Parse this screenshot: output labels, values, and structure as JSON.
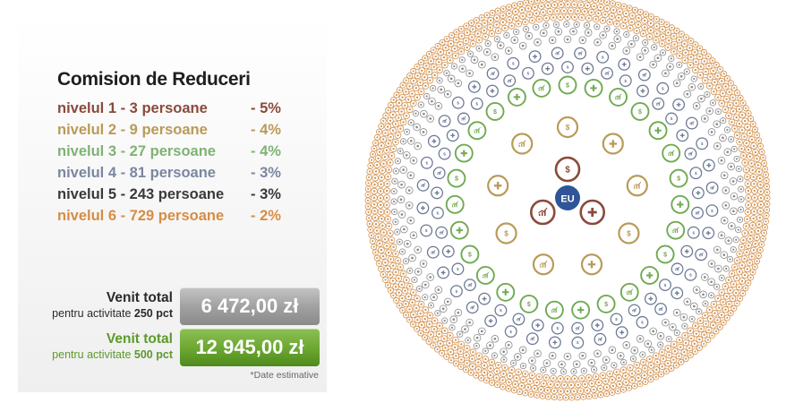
{
  "title": "Comision de Reduceri",
  "levels": [
    {
      "label": "nivelul 1 - 3 persoane",
      "percent": "- 5%",
      "color": "#8a4a3c"
    },
    {
      "label": "nivelul 2 - 9 persoane",
      "percent": "- 4%",
      "color": "#b99a58"
    },
    {
      "label": "nivelul 3 - 27 persoane",
      "percent": "- 4%",
      "color": "#7fb274"
    },
    {
      "label": "nivelul 4 - 81 persoane",
      "percent": "- 3%",
      "color": "#7b86a0"
    },
    {
      "label": "nivelul 5 - 243 persoane",
      "percent": "- 3%",
      "color": "#3a3a3a"
    },
    {
      "label": "nivelul 6 - 729 persoane",
      "percent": "- 2%",
      "color": "#d68d44"
    }
  ],
  "income": [
    {
      "label": "Venit total",
      "sub_prefix": "pentru activitate",
      "sub_value": "250 pct",
      "amount": "6 472,00 zł",
      "style": "gray",
      "label_color": "#2a2a2a"
    },
    {
      "label": "Venit total",
      "sub_prefix": "pentru activitate",
      "sub_value": "500 pct",
      "amount": "12 945,00 zł",
      "style": "green",
      "label_color": "#5c9a2c"
    }
  ],
  "footnote": "*Date estimative",
  "diagram": {
    "center_label": "EU",
    "center_color": "#2f5598",
    "icon_cycle": [
      "dollar",
      "plus",
      "chart"
    ],
    "rings": [
      {
        "level": 1,
        "count": 3,
        "color": "#8a4a3c"
      },
      {
        "level": 2,
        "count": 9,
        "color": "#b99a58"
      },
      {
        "level": 3,
        "count": 27,
        "color": "#6faa52"
      },
      {
        "level": 4,
        "count": 81,
        "color": "#6b7893"
      },
      {
        "level": 5,
        "count": 243,
        "color": "#8c8c8c"
      },
      {
        "level": 6,
        "count": 729,
        "color": "#d4924e"
      }
    ]
  }
}
